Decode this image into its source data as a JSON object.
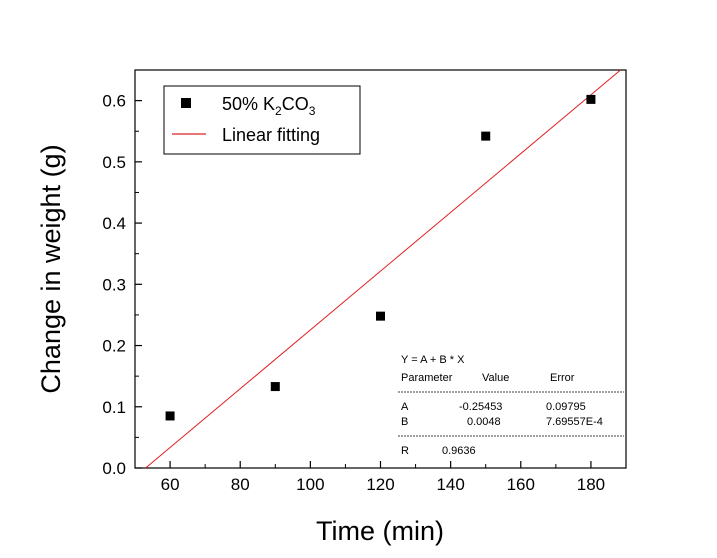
{
  "chart_data": {
    "type": "scatter",
    "xlabel": "Time (min)",
    "ylabel": "Change in weight (g)",
    "xlim": [
      50,
      190
    ],
    "ylim": [
      0,
      0.65
    ],
    "x_ticks": [
      "60",
      "80",
      "100",
      "120",
      "140",
      "160",
      "180"
    ],
    "y_ticks": [
      "0.0",
      "0.1",
      "0.2",
      "0.3",
      "0.4",
      "0.5",
      "0.6"
    ],
    "grid": false,
    "legend_position": "top-left",
    "series": [
      {
        "name_prefix": "50% K",
        "name_sub1": "2",
        "name_mid": "CO",
        "name_sub2": "3",
        "marker": "square",
        "color": "#000000",
        "x": [
          60,
          90,
          120,
          150,
          180
        ],
        "y": [
          0.085,
          0.133,
          0.248,
          0.542,
          0.602
        ]
      },
      {
        "name": "Linear fitting",
        "type": "line",
        "color": "#e02020",
        "intercept": -0.25453,
        "slope": 0.0048
      }
    ],
    "fit_table": {
      "equation": "Y = A + B * X",
      "headers": [
        "Parameter",
        "Value",
        "Error"
      ],
      "rows": [
        [
          "A",
          "-0.25453",
          "0.09795"
        ],
        [
          "B",
          "0.0048",
          "7.69557E-4"
        ]
      ],
      "r_label": "R",
      "r_value": "0.9636"
    }
  }
}
